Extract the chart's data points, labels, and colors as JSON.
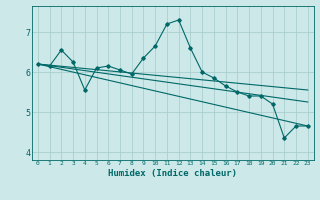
{
  "title": "",
  "xlabel": "Humidex (Indice chaleur)",
  "background_color": "#cce8e8",
  "grid_color": "#aacece",
  "line_color": "#006868",
  "xlim": [
    -0.5,
    23.5
  ],
  "ylim": [
    3.8,
    7.65
  ],
  "yticks": [
    4,
    5,
    6,
    7
  ],
  "xticks": [
    0,
    1,
    2,
    3,
    4,
    5,
    6,
    7,
    8,
    9,
    10,
    11,
    12,
    13,
    14,
    15,
    16,
    17,
    18,
    19,
    20,
    21,
    22,
    23
  ],
  "series1_x": [
    0,
    1,
    2,
    3,
    4,
    5,
    6,
    7,
    8,
    9,
    10,
    11,
    12,
    13,
    14,
    15,
    16,
    17,
    18,
    19,
    20,
    21,
    22,
    23
  ],
  "series1_y": [
    6.2,
    6.15,
    6.55,
    6.25,
    5.55,
    6.1,
    6.15,
    6.05,
    5.95,
    6.35,
    6.65,
    7.2,
    7.3,
    6.6,
    6.0,
    5.85,
    5.65,
    5.5,
    5.4,
    5.4,
    5.2,
    4.35,
    4.65,
    4.65
  ],
  "trend1_x": [
    0,
    23
  ],
  "trend1_y": [
    6.2,
    4.65
  ],
  "trend2_x": [
    0,
    23
  ],
  "trend2_y": [
    6.2,
    5.55
  ],
  "trend3_x": [
    0,
    23
  ],
  "trend3_y": [
    6.2,
    5.25
  ]
}
